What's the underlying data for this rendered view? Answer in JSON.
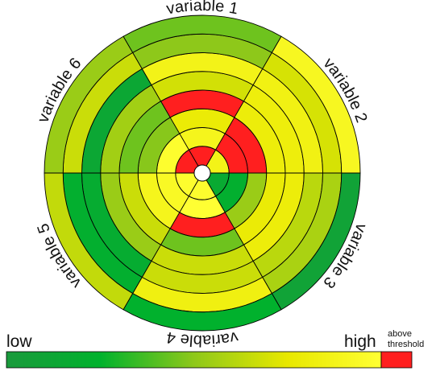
{
  "chart_data": {
    "type": "heatmap",
    "variables": [
      "variable 1",
      "variable 2",
      "variable 3",
      "variable 4",
      "variable 5",
      "variable 6"
    ],
    "levels": 8,
    "level_order": "inner-to-outer",
    "scale": {
      "min": 0,
      "max": 1,
      "threshold": 0.9
    },
    "values": [
      [
        0.95,
        0.8,
        0.7,
        0.98,
        0.62,
        0.78,
        0.45,
        0.4
      ],
      [
        0.78,
        0.96,
        0.96,
        0.72,
        0.73,
        0.76,
        0.63,
        0.82
      ],
      [
        0.15,
        0.2,
        0.48,
        0.7,
        0.72,
        0.56,
        0.52,
        0.08
      ],
      [
        0.88,
        0.9,
        0.93,
        0.4,
        0.6,
        0.6,
        0.75,
        0.22
      ],
      [
        0.88,
        0.84,
        0.8,
        0.6,
        0.48,
        0.17,
        0.2,
        0.58
      ],
      [
        0.92,
        0.88,
        0.44,
        0.4,
        0.5,
        0.12,
        0.6,
        0.48
      ]
    ],
    "colorbar": {
      "low_label": "low",
      "high_label": "high",
      "above_label_line1": "above",
      "above_label_line2": "threshold",
      "stops": [
        "#1a9a3c",
        "#00b22d",
        "#8ec81a",
        "#e8e800",
        "#ffff33"
      ],
      "above_color": "#ff1f1f"
    },
    "grid": false,
    "legend_position": "bottom"
  }
}
